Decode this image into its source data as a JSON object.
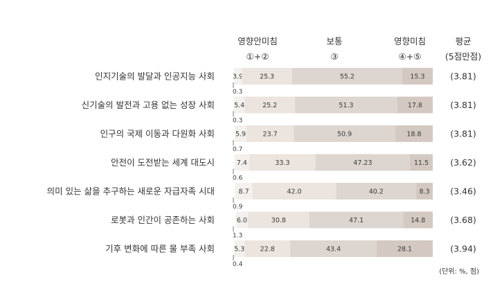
{
  "chart_data": {
    "type": "bar",
    "stacked": true,
    "orientation": "horizontal",
    "column_headers": [
      {
        "line1": "영향안미침",
        "line2": "①+②"
      },
      {
        "line1": "보통",
        "line2": "③"
      },
      {
        "line1": "영향미침",
        "line2": "④+⑤"
      },
      {
        "line1": "평균",
        "line2": "(5점만점)"
      }
    ],
    "unit_note": "(단위: %, 점)",
    "categories": [
      "인지기술의 발달과 인공지능 사회",
      "신기술의 발전과 고용 없는 성장 사회",
      "인구의 국제 이동과 다원화 사회",
      "안전이 도전받는 세계 대도시",
      "의미 있는 삶을 추구하는 새로운 자급자족 시대",
      "로봇과 인간이 공존하는 사회",
      "기후 변화에 따른 물 부족 사회"
    ],
    "series": [
      {
        "values": [
          0.3,
          0.3,
          0.7,
          0.6,
          0.9,
          1.3,
          0.4
        ],
        "labels": [
          "0.3",
          "0.3",
          "0.7",
          "0.6",
          "0.9",
          "1.3",
          "0.4"
        ],
        "color": "#ffffff"
      },
      {
        "values": [
          3.9,
          5.4,
          5.9,
          7.4,
          8.7,
          6.0,
          5.3
        ],
        "labels": [
          "3.9",
          "5.4",
          "5.9",
          "7.4",
          "8.7",
          "6.0",
          "5.3"
        ],
        "color": "#f4f0ed"
      },
      {
        "values": [
          25.3,
          25.2,
          23.7,
          33.3,
          42.0,
          30.8,
          22.8
        ],
        "labels": [
          "25.3",
          "25.2",
          "23.7",
          "33.3",
          "42.0",
          "30.8",
          "22.8"
        ],
        "color": "#ebe4df"
      },
      {
        "values": [
          55.2,
          51.3,
          50.9,
          47.23,
          40.2,
          47.1,
          43.4
        ],
        "labels": [
          "55.2",
          "51.3",
          "50.9",
          "47.23",
          "40.2",
          "47.1",
          "43.4"
        ],
        "color": "#ddd5d0"
      },
      {
        "values": [
          15.3,
          17.8,
          18.8,
          11.5,
          8.3,
          14.8,
          28.1
        ],
        "labels": [
          "15.3",
          "17.8",
          "18.8",
          "11.5",
          "8.3",
          "14.8",
          "28.1"
        ],
        "color": "#d4c9c2"
      }
    ],
    "averages": [
      "(3.81)",
      "(3.81)",
      "(3.81)",
      "(3.62)",
      "(3.46)",
      "(3.68)",
      "(3.94)"
    ]
  }
}
